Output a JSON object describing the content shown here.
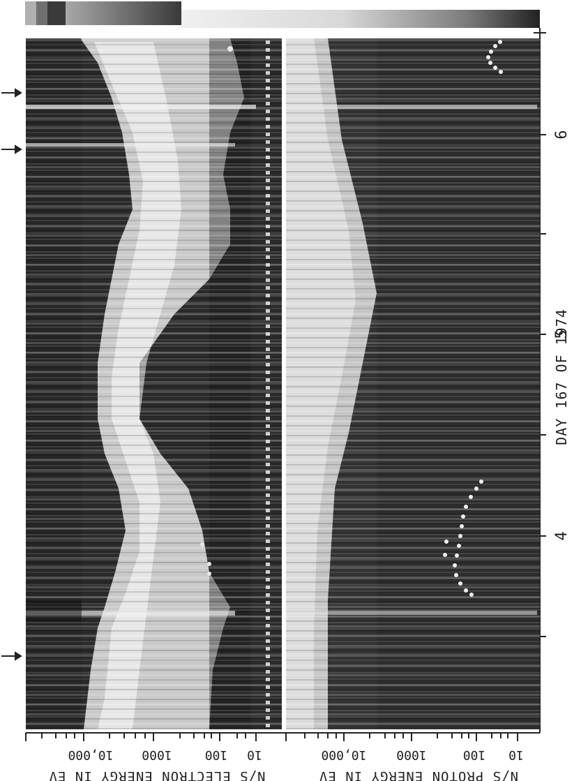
{
  "figure": {
    "day_label": "DAY 167 OF 1974",
    "hour_labels": [
      "4",
      "5",
      "6"
    ],
    "electron_axis": {
      "title": "N/S ELECTRON ENERGY IN EV",
      "ticks": [
        "10,000",
        "1000",
        "100",
        "10"
      ]
    },
    "proton_axis": {
      "title": "N/S PROTON ENERGY IN EV",
      "ticks": [
        "10,000",
        "1000",
        "100",
        "10"
      ]
    },
    "colors": {
      "background": "#ffffff",
      "spectrogram_dark": "#262626",
      "spectrogram_light": "#e6e6e6",
      "ink": "#222222"
    }
  }
}
